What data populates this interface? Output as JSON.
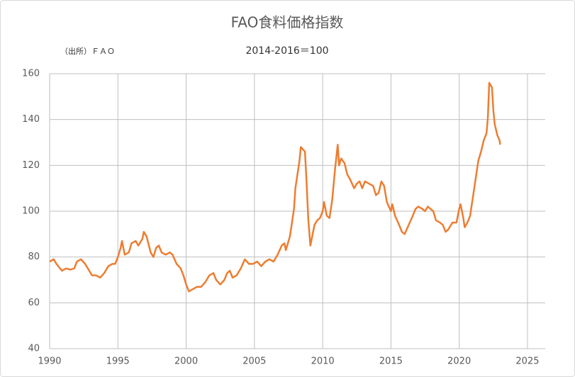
{
  "chart_data": {
    "type": "line",
    "title": "FAO食料価格指数",
    "subtitle": "2014-2016＝100",
    "annotation": "（出所）ＦＡＯ",
    "color": "#ed7d31",
    "grid": true,
    "xlim": [
      1990,
      2026.3
    ],
    "xticks": [
      1990,
      1995,
      2000,
      2005,
      2010,
      2015,
      2020,
      2025
    ],
    "ylim": [
      40,
      160
    ],
    "yticks": [
      40,
      60,
      80,
      100,
      120,
      140,
      160
    ],
    "x": [
      1990.0,
      1990.3,
      1990.5,
      1990.9,
      1991.2,
      1991.5,
      1991.8,
      1992.0,
      1992.3,
      1992.6,
      1992.9,
      1993.1,
      1993.4,
      1993.7,
      1994.0,
      1994.3,
      1994.6,
      1994.8,
      1995.0,
      1995.2,
      1995.3,
      1995.5,
      1995.8,
      1996.0,
      1996.3,
      1996.5,
      1996.8,
      1996.9,
      1997.1,
      1997.4,
      1997.6,
      1997.8,
      1998.0,
      1998.2,
      1998.5,
      1998.8,
      1999.0,
      1999.3,
      1999.6,
      1999.8,
      2000.0,
      2000.2,
      2000.5,
      2000.8,
      2001.1,
      2001.4,
      2001.7,
      2002.0,
      2002.2,
      2002.5,
      2002.8,
      2003.0,
      2003.2,
      2003.4,
      2003.7,
      2004.0,
      2004.3,
      2004.6,
      2004.9,
      2005.2,
      2005.5,
      2005.8,
      2006.1,
      2006.4,
      2006.7,
      2007.0,
      2007.2,
      2007.3,
      2007.6,
      2007.9,
      2008.0,
      2008.2,
      2008.3,
      2008.4,
      2008.55,
      2008.7,
      2008.8,
      2008.95,
      2009.1,
      2009.2,
      2009.4,
      2009.6,
      2009.8,
      2010.0,
      2010.1,
      2010.3,
      2010.5,
      2010.7,
      2010.9,
      2011.1,
      2011.2,
      2011.35,
      2011.6,
      2011.8,
      2012.0,
      2012.3,
      2012.5,
      2012.7,
      2012.9,
      2013.1,
      2013.4,
      2013.7,
      2013.9,
      2014.1,
      2014.3,
      2014.5,
      2014.7,
      2015.0,
      2015.1,
      2015.3,
      2015.6,
      2015.8,
      2016.0,
      2016.3,
      2016.6,
      2016.8,
      2017.0,
      2017.3,
      2017.5,
      2017.7,
      2017.9,
      2018.1,
      2018.3,
      2018.6,
      2018.8,
      2019.0,
      2019.2,
      2019.5,
      2019.8,
      2020.0,
      2020.1,
      2020.3,
      2020.4,
      2020.6,
      2020.8,
      2021.0,
      2021.2,
      2021.4,
      2021.6,
      2021.8,
      2022.0,
      2022.1,
      2022.2,
      2022.4,
      2022.5,
      2022.6,
      2022.8,
      2022.95,
      2023.0
    ],
    "values": [
      78,
      79,
      77,
      74,
      75,
      74.5,
      75,
      78,
      79,
      77,
      74,
      72,
      72,
      71,
      73,
      76,
      77,
      77,
      80,
      84,
      87,
      81,
      82,
      86,
      87,
      85,
      88,
      91,
      89,
      82,
      80,
      84,
      85,
      82,
      81,
      82,
      81,
      77,
      75,
      72,
      68,
      65,
      66,
      67,
      67,
      69,
      72,
      73,
      70,
      68,
      70,
      73,
      74,
      71,
      72,
      75,
      79,
      77,
      77,
      78,
      76,
      78,
      79,
      78,
      81,
      85,
      86,
      83,
      89,
      101,
      110,
      118,
      122,
      128,
      127,
      126,
      115,
      96,
      85,
      88,
      94,
      96,
      97,
      100,
      104,
      98,
      97,
      105,
      118,
      129,
      120,
      123,
      121,
      116,
      114,
      110,
      112,
      113,
      110,
      113,
      112,
      111,
      107,
      108,
      113,
      111,
      104,
      100,
      103,
      98,
      94,
      91,
      90,
      94,
      98,
      101,
      102,
      101,
      100,
      102,
      101,
      100,
      96,
      95,
      94,
      91,
      92,
      95,
      95,
      101,
      103,
      97,
      93,
      95,
      98,
      106,
      114,
      122,
      126,
      131,
      134,
      141,
      156,
      154,
      144,
      138,
      133,
      131,
      129
    ]
  }
}
